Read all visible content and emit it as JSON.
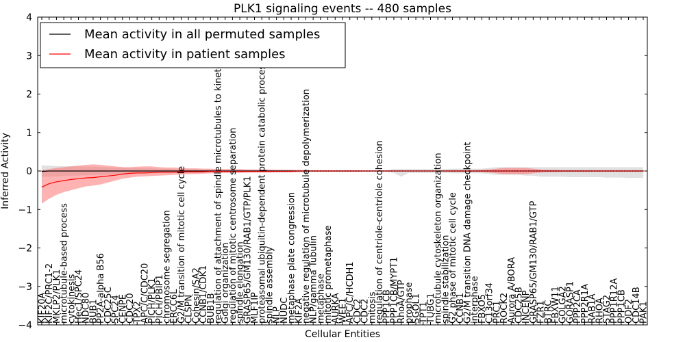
{
  "chart_data": {
    "type": "line",
    "title": "PLK1 signaling events -- 480 samples",
    "xlabel": "Cellular Entities",
    "ylabel": "Inferred Activity",
    "ylim": [
      -4,
      4
    ],
    "yticks": [
      "−4",
      "−3",
      "−2",
      "−1",
      "0",
      "1",
      "2",
      "3",
      "4"
    ],
    "legend": {
      "placement": "top-left",
      "entries": [
        {
          "label": "Mean activity in all permuted samples",
          "color": "#000000"
        },
        {
          "label": "Mean activity in patient samples",
          "color": "#ff0000"
        }
      ]
    },
    "grid": false,
    "categories": [
      "KIF20A",
      "KIF2C/PRC1-2",
      "MKLP2/PLK1",
      "microtubule-based process",
      "cytokinesis",
      "Hec1/SPC24",
      "NDC80",
      "BUB1",
      "PP2A-alpha B56",
      "CDC25C",
      "SPC24",
      "CENPE",
      "CDC20",
      "TPX2",
      "APC/C/CDC20",
      "PICH/PLK1",
      "PICH/PBIP1",
      "chromosome segregation",
      "ERCC6L",
      "G2/M transition of mitotic cell cycle",
      "CLSPN",
      "Cohesin/SA2",
      "CCNB1/CDK1",
      "BUB1B",
      "regulation of attachment of spindle microtubules to kinetochore",
      "Golgi organization",
      "regulation of mitotic centrosome separation",
      "spindle elongation",
      "GRASP65/GM130/RAB1/GTP/PLK1",
      "MLF1IP",
      "proteasomal ubiquitin-dependent protein catabolic process",
      "spindle assembly",
      "NLP",
      "NUDC",
      "metaphase plate congression",
      "KIF2A",
      "negative regulation of microtubule depolymerization",
      "NLP/gamma Tubulin",
      "metaphase",
      "mitotic prometaphase",
      "AURKA",
      "WEE1",
      "APC/C/HCDH1",
      "CDC2",
      "CDC2",
      "mitosis",
      "regulation of centriole-centriole cohesion",
      "PPP1CB",
      "PPP1CB/MYPT1",
      "RhoA/GTP",
      "prophase",
      "SGOL1",
      "TPT1",
      "TUBG1",
      "microtubule cytoskeleton organization",
      "spindle stabilization",
      "G2 phase of mitotic cell cycle",
      "CCNB1",
      "G2/M transition DNA damage checkpoint",
      "interphase",
      "FBXO5",
      "C13orf34",
      "PRC1",
      "ROCK2",
      "Aurora A/BORA",
      "CDC25B",
      "INCENP",
      "GRASP65/GM130/RAB1/GTP",
      "FZR1",
      "BTRC",
      "FBXW11",
      "GOLGA2",
      "GORASP1",
      "PPP2CA",
      "PPP2R1A",
      "RAB1A",
      "RHOA",
      "STAG2",
      "PPP1R12A",
      "PPP1CB",
      "ODF2",
      "CDC14B",
      "PAK1"
    ],
    "series": [
      {
        "name": "Mean activity in all permuted samples",
        "color": "#000000",
        "values": [
          -0.01,
          0,
          0,
          0,
          0,
          0,
          0,
          0,
          0,
          0,
          0,
          0,
          0,
          0,
          0,
          0,
          0,
          0,
          0,
          0,
          0,
          0,
          0,
          0,
          0,
          0,
          0,
          0,
          0,
          0,
          0,
          0,
          0,
          0,
          0,
          0,
          0,
          0,
          0,
          0,
          0,
          0,
          0,
          0,
          0,
          0,
          0,
          0,
          0,
          0,
          0,
          0,
          0,
          0,
          0,
          0,
          0,
          0,
          0,
          0,
          0,
          0,
          0,
          0,
          0,
          0,
          0,
          0,
          0,
          0,
          0,
          0,
          0,
          0,
          0,
          0,
          0,
          0,
          0,
          0,
          0,
          0,
          0
        ],
        "band_low": [
          -0.15,
          -0.15,
          -0.14,
          -0.13,
          -0.12,
          -0.12,
          -0.11,
          -0.11,
          -0.1,
          -0.1,
          -0.09,
          -0.09,
          -0.08,
          -0.08,
          -0.07,
          -0.07,
          -0.06,
          -0.06,
          -0.05,
          -0.05,
          -0.05,
          -0.05,
          -0.04,
          -0.04,
          -0.04,
          -0.04,
          -0.04,
          -0.03,
          -0.03,
          -0.03,
          -0.03,
          -0.03,
          -0.03,
          -0.03,
          -0.02,
          -0.02,
          -0.02,
          -0.02,
          -0.02,
          -0.02,
          -0.02,
          -0.02,
          -0.02,
          -0.02,
          -0.02,
          -0.02,
          -0.02,
          -0.02,
          -0.05,
          -0.15,
          -0.05,
          -0.05,
          -0.05,
          -0.05,
          -0.05,
          -0.05,
          -0.06,
          -0.06,
          -0.06,
          -0.06,
          -0.06,
          -0.08,
          -0.1,
          -0.1,
          -0.1,
          -0.1,
          -0.12,
          -0.12,
          -0.15,
          -0.15,
          -0.15,
          -0.15,
          -0.16,
          -0.16,
          -0.16,
          -0.16,
          -0.16,
          -0.17,
          -0.17,
          -0.17,
          -0.18,
          -0.18,
          -0.18
        ],
        "band_high": [
          0.15,
          0.14,
          0.13,
          0.13,
          0.12,
          0.12,
          0.11,
          0.11,
          0.1,
          0.1,
          0.09,
          0.09,
          0.08,
          0.08,
          0.07,
          0.07,
          0.06,
          0.06,
          0.05,
          0.05,
          0.05,
          0.05,
          0.04,
          0.04,
          0.04,
          0.04,
          0.04,
          0.03,
          0.03,
          0.03,
          0.03,
          0.03,
          0.03,
          0.03,
          0.02,
          0.02,
          0.02,
          0.02,
          0.02,
          0.02,
          0.02,
          0.02,
          0.02,
          0.02,
          0.02,
          0.02,
          0.02,
          0.02,
          0.05,
          0.05,
          0.05,
          0.05,
          0.05,
          0.05,
          0.05,
          0.05,
          0.06,
          0.06,
          0.06,
          0.06,
          0.06,
          0.08,
          0.1,
          0.1,
          0.1,
          0.1,
          0.1,
          0.1,
          0.1,
          0.1,
          0.1,
          0.1,
          0.1,
          0.1,
          0.1,
          0.1,
          0.1,
          0.1,
          0.1,
          0.1,
          0.1,
          0.1,
          0.1
        ]
      },
      {
        "name": "Mean activity in patient samples",
        "color": "#ff0000",
        "values": [
          -0.42,
          -0.33,
          -0.28,
          -0.25,
          -0.22,
          -0.2,
          -0.18,
          -0.17,
          -0.15,
          -0.13,
          -0.11,
          -0.08,
          -0.06,
          -0.05,
          -0.05,
          -0.04,
          -0.03,
          -0.03,
          -0.03,
          -0.02,
          -0.02,
          -0.02,
          -0.02,
          -0.01,
          -0.01,
          -0.01,
          -0.01,
          -0.01,
          -0.01,
          -0.01,
          -0.01,
          -0.01,
          -0.01,
          -0.01,
          -0.01,
          0,
          0,
          0,
          0,
          0,
          0,
          0,
          0,
          0,
          0,
          0,
          0,
          0,
          0,
          0,
          0,
          0,
          0,
          0,
          0,
          0,
          0,
          0,
          0,
          0,
          0,
          0,
          0,
          0,
          0,
          0,
          0,
          0,
          0,
          0,
          0,
          0,
          0,
          0,
          0,
          0,
          0,
          0,
          0,
          0,
          0,
          0,
          0
        ],
        "band_low": [
          -0.85,
          -0.72,
          -0.62,
          -0.55,
          -0.5,
          -0.45,
          -0.4,
          -0.38,
          -0.35,
          -0.3,
          -0.25,
          -0.2,
          -0.17,
          -0.15,
          -0.14,
          -0.13,
          -0.12,
          -0.11,
          -0.1,
          -0.09,
          -0.08,
          -0.08,
          -0.07,
          -0.06,
          -0.06,
          -0.05,
          -0.05,
          -0.05,
          -0.04,
          -0.04,
          -0.04,
          -0.04,
          -0.03,
          -0.03,
          -0.03,
          -0.03,
          -0.02,
          -0.02,
          -0.02,
          -0.02,
          -0.02,
          -0.02,
          -0.02,
          -0.02,
          -0.01,
          -0.01,
          -0.01,
          -0.01,
          -0.01,
          -0.01,
          -0.01,
          -0.01,
          -0.01,
          -0.01,
          -0.01,
          -0.01,
          -0.02,
          -0.02,
          -0.02,
          -0.02,
          -0.03,
          -0.04,
          -0.06,
          -0.08,
          -0.08,
          -0.08,
          -0.08,
          -0.06,
          -0.04,
          -0.03,
          -0.03,
          -0.02,
          -0.02,
          -0.02,
          -0.02,
          -0.02,
          -0.02,
          -0.02,
          -0.02,
          -0.02,
          -0.02,
          -0.02,
          -0.02
        ],
        "band_high": [
          0.02,
          0.05,
          0.08,
          0.1,
          0.12,
          0.14,
          0.16,
          0.17,
          0.16,
          0.14,
          0.12,
          0.1,
          0.1,
          0.11,
          0.12,
          0.12,
          0.1,
          0.09,
          0.09,
          0.08,
          0.07,
          0.07,
          0.06,
          0.06,
          0.05,
          0.05,
          0.05,
          0.05,
          0.04,
          0.04,
          0.04,
          0.04,
          0.03,
          0.03,
          0.03,
          0.03,
          0.02,
          0.02,
          0.02,
          0.02,
          0.02,
          0.02,
          0.02,
          0.02,
          0.01,
          0.01,
          0.01,
          0.01,
          0.01,
          0.01,
          0.01,
          0.01,
          0.01,
          0.01,
          0.01,
          0.01,
          0.02,
          0.02,
          0.02,
          0.02,
          0.03,
          0.04,
          0.06,
          0.08,
          0.08,
          0.08,
          0.08,
          0.06,
          0.04,
          0.03,
          0.03,
          0.02,
          0.02,
          0.02,
          0.02,
          0.02,
          0.02,
          0.02,
          0.02,
          0.02,
          0.02,
          0.02,
          0.02
        ]
      }
    ]
  }
}
